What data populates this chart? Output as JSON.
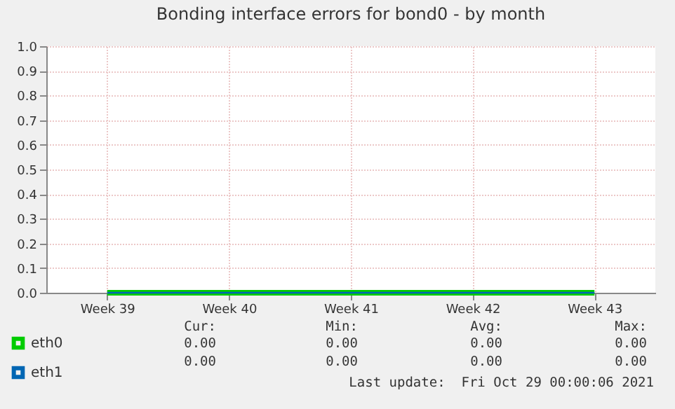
{
  "chart_data": {
    "type": "line",
    "title": "Bonding interface errors for bond0 - by month",
    "categories": [
      "Week 39",
      "Week 40",
      "Week 41",
      "Week 42",
      "Week 43"
    ],
    "series": [
      {
        "name": "eth0",
        "color": "#00cc00",
        "values": [
          0,
          0,
          0,
          0,
          0
        ]
      },
      {
        "name": "eth1",
        "color": "#0066b3",
        "values": [
          0,
          0,
          0,
          0,
          0
        ]
      }
    ],
    "ylim": [
      0,
      1
    ],
    "yticks": [
      {
        "value": 0,
        "label": "0.0"
      },
      {
        "value": 0.1,
        "label": "0.1"
      },
      {
        "value": 0.2,
        "label": "0.2"
      },
      {
        "value": 0.3,
        "label": "0.3"
      },
      {
        "value": 0.4,
        "label": "0.4"
      },
      {
        "value": 0.5,
        "label": "0.5"
      },
      {
        "value": 0.6,
        "label": "0.6"
      },
      {
        "value": 0.7,
        "label": "0.7"
      },
      {
        "value": 0.8,
        "label": "0.8"
      },
      {
        "value": 0.9,
        "label": "0.9"
      },
      {
        "value": 1,
        "label": "1.0"
      }
    ],
    "grid": true,
    "legend": "bottom left",
    "annotations": [
      "Cur:",
      "Min:",
      "Avg:",
      "Max:",
      "0.00",
      "0.00",
      "0.00",
      "0.00",
      "0.00",
      "0.00",
      "0.00",
      "0.00",
      "Last update:  Fri Oct 29 00:00:06 2021"
    ]
  }
}
